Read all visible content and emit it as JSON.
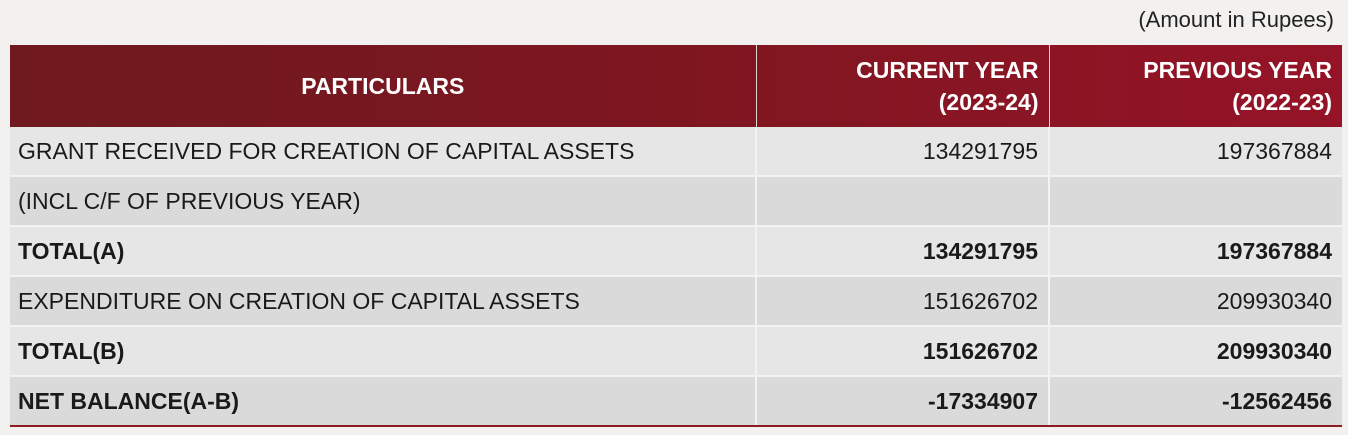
{
  "note": "(Amount in Rupees)",
  "headers": {
    "particulars": "PARTICULARS",
    "current_year_1": "CURRENT YEAR",
    "current_year_2": "(2023-24)",
    "previous_year_1": "PREVIOUS YEAR",
    "previous_year_2": "(2022-23)"
  },
  "rows": [
    {
      "particular": "GRANT RECEIVED FOR CREATION OF CAPITAL ASSETS",
      "current": "134291795",
      "previous": "197367884"
    },
    {
      "particular": "(INCL C/F OF PREVIOUS YEAR)",
      "current": "",
      "previous": ""
    },
    {
      "particular": "TOTAL(A)",
      "current": "134291795",
      "previous": "197367884"
    },
    {
      "particular": "EXPENDITURE ON CREATION OF CAPITAL ASSETS",
      "current": "151626702",
      "previous": "209930340"
    },
    {
      "particular": "TOTAL(B)",
      "current": "151626702",
      "previous": "209930340"
    },
    {
      "particular": "NET BALANCE(A-B)",
      "current": "-17334907",
      "previous": "-12562456"
    }
  ],
  "colors": {
    "header_start": "#6f1a1f",
    "header_end": "#951427",
    "row_light": "#e6e6e6",
    "row_dark": "#dadada"
  }
}
